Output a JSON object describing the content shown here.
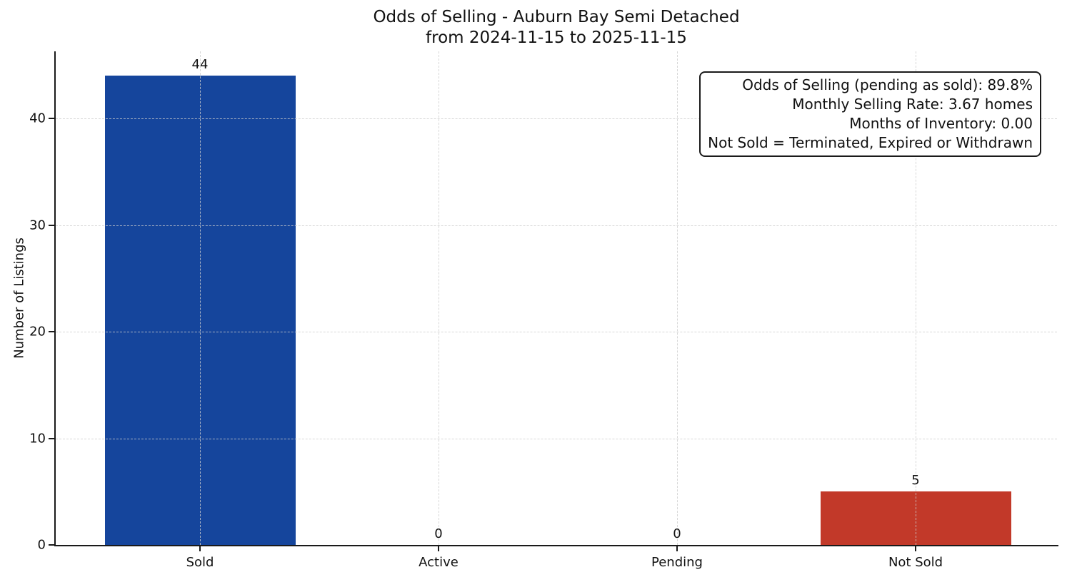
{
  "figure": {
    "title_line1": "Odds of Selling - Auburn Bay Semi Detached",
    "title_line2": "from 2024-11-15 to 2025-11-15",
    "ylabel": "Number of Listings"
  },
  "chart_data": {
    "type": "bar",
    "title": "Odds of Selling - Auburn Bay Semi Detached\nfrom 2024-11-15 to 2025-11-15",
    "xlabel": "",
    "ylabel": "Number of Listings",
    "categories": [
      "Sold",
      "Active",
      "Pending",
      "Not Sold"
    ],
    "values": [
      44,
      0,
      0,
      5
    ],
    "value_labels": [
      "44",
      "0",
      "0",
      "5"
    ],
    "bar_colors": [
      "#15459c",
      null,
      null,
      "#c23929"
    ],
    "yticks": [
      0,
      10,
      20,
      30,
      40
    ],
    "ylim": [
      0,
      46.3
    ],
    "grid": "dashed",
    "legend": "none",
    "annotation": {
      "position": "top-right",
      "lines": [
        "Odds of Selling (pending as sold): 89.8%",
        "Monthly Selling Rate: 3.67 homes",
        "Months of Inventory: 0.00",
        "Not Sold = Terminated, Expired or Withdrawn"
      ]
    },
    "colors": {
      "sold_bar": "#15459c",
      "not_sold_bar": "#c23929",
      "grid": "#d3d3d3",
      "axis": "#1a1a1a",
      "background": "#ffffff"
    }
  }
}
